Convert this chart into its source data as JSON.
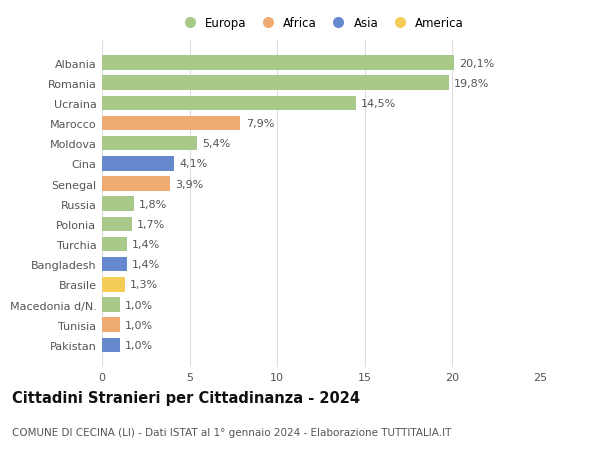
{
  "title": "Cittadini Stranieri per Cittadinanza - 2024",
  "subtitle": "COMUNE DI CECINA (LI) - Dati ISTAT al 1° gennaio 2024 - Elaborazione TUTTITALIA.IT",
  "categories": [
    "Albania",
    "Romania",
    "Ucraina",
    "Marocco",
    "Moldova",
    "Cina",
    "Senegal",
    "Russia",
    "Polonia",
    "Turchia",
    "Bangladesh",
    "Brasile",
    "Macedonia d/N.",
    "Tunisia",
    "Pakistan"
  ],
  "values": [
    20.1,
    19.8,
    14.5,
    7.9,
    5.4,
    4.1,
    3.9,
    1.8,
    1.7,
    1.4,
    1.4,
    1.3,
    1.0,
    1.0,
    1.0
  ],
  "labels": [
    "20,1%",
    "19,8%",
    "14,5%",
    "7,9%",
    "5,4%",
    "4,1%",
    "3,9%",
    "1,8%",
    "1,7%",
    "1,4%",
    "1,4%",
    "1,3%",
    "1,0%",
    "1,0%",
    "1,0%"
  ],
  "continents": [
    "Europa",
    "Europa",
    "Europa",
    "Africa",
    "Europa",
    "Asia",
    "Africa",
    "Europa",
    "Europa",
    "Europa",
    "Asia",
    "America",
    "Europa",
    "Africa",
    "Asia"
  ],
  "continent_colors": {
    "Europa": "#a8c98a",
    "Africa": "#f0ab72",
    "Asia": "#6688cc",
    "America": "#f5cc55"
  },
  "legend_order": [
    "Europa",
    "Africa",
    "Asia",
    "America"
  ],
  "xlim": [
    0,
    25
  ],
  "xticks": [
    0,
    5,
    10,
    15,
    20,
    25
  ],
  "bar_height": 0.72,
  "background_color": "#ffffff",
  "grid_color": "#dddddd",
  "label_fontsize": 8.0,
  "tick_fontsize": 8.0,
  "title_fontsize": 10.5,
  "subtitle_fontsize": 7.5,
  "legend_fontsize": 8.5
}
